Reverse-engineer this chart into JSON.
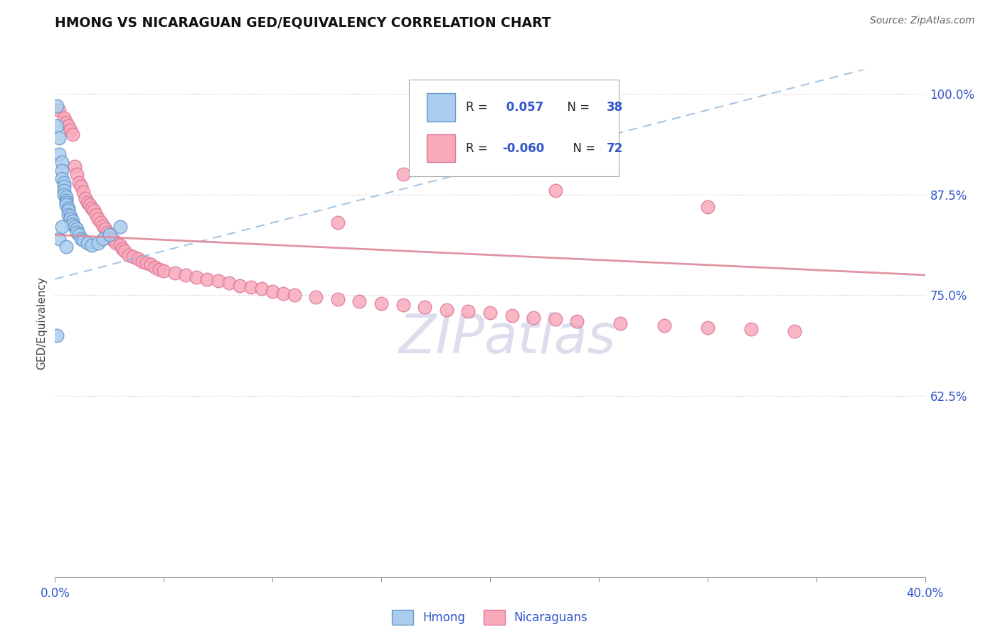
{
  "title": "HMONG VS NICARAGUAN GED/EQUIVALENCY CORRELATION CHART",
  "source": "Source: ZipAtlas.com",
  "ylabel": "GED/Equivalency",
  "xlim": [
    0.0,
    0.4
  ],
  "ylim": [
    0.4,
    1.03
  ],
  "hmong_R": 0.057,
  "hmong_N": 38,
  "nicaraguan_R": -0.06,
  "nicaraguan_N": 72,
  "hmong_color": "#AACCEE",
  "hmong_edge_color": "#6699CC",
  "nicaraguan_color": "#F8AABB",
  "nicaraguan_edge_color": "#DD7799",
  "trend_blue_color": "#99BBDD",
  "trend_pink_color": "#DD8899",
  "background_color": "#FFFFFF",
  "grid_color": "#CCCCCC",
  "title_color": "#111111",
  "label_color": "#3355CC",
  "watermark_color": "#DDDDEE",
  "hmong_x": [
    0.001,
    0.001,
    0.002,
    0.002,
    0.003,
    0.003,
    0.003,
    0.004,
    0.004,
    0.004,
    0.004,
    0.005,
    0.005,
    0.005,
    0.005,
    0.006,
    0.006,
    0.006,
    0.007,
    0.007,
    0.008,
    0.008,
    0.009,
    0.01,
    0.01,
    0.011,
    0.012,
    0.013,
    0.015,
    0.017,
    0.02,
    0.022,
    0.025,
    0.03,
    0.001,
    0.002,
    0.003,
    0.005
  ],
  "hmong_y": [
    0.985,
    0.96,
    0.945,
    0.925,
    0.915,
    0.905,
    0.895,
    0.89,
    0.885,
    0.88,
    0.875,
    0.872,
    0.868,
    0.865,
    0.862,
    0.858,
    0.855,
    0.85,
    0.848,
    0.845,
    0.842,
    0.838,
    0.835,
    0.832,
    0.828,
    0.825,
    0.82,
    0.818,
    0.815,
    0.812,
    0.815,
    0.82,
    0.825,
    0.835,
    0.7,
    0.82,
    0.835,
    0.81
  ],
  "nicaraguan_x": [
    0.002,
    0.004,
    0.005,
    0.006,
    0.007,
    0.008,
    0.009,
    0.01,
    0.011,
    0.012,
    0.013,
    0.014,
    0.015,
    0.016,
    0.017,
    0.018,
    0.019,
    0.02,
    0.021,
    0.022,
    0.023,
    0.024,
    0.025,
    0.026,
    0.027,
    0.028,
    0.03,
    0.031,
    0.032,
    0.034,
    0.036,
    0.038,
    0.04,
    0.042,
    0.044,
    0.046,
    0.048,
    0.05,
    0.055,
    0.06,
    0.065,
    0.07,
    0.075,
    0.08,
    0.085,
    0.09,
    0.095,
    0.1,
    0.105,
    0.11,
    0.12,
    0.13,
    0.14,
    0.15,
    0.16,
    0.17,
    0.18,
    0.19,
    0.2,
    0.21,
    0.22,
    0.23,
    0.24,
    0.26,
    0.28,
    0.3,
    0.32,
    0.34,
    0.16,
    0.23,
    0.3,
    0.13
  ],
  "nicaraguan_y": [
    0.98,
    0.97,
    0.965,
    0.96,
    0.955,
    0.95,
    0.91,
    0.9,
    0.89,
    0.885,
    0.878,
    0.87,
    0.865,
    0.862,
    0.858,
    0.855,
    0.85,
    0.845,
    0.84,
    0.836,
    0.832,
    0.828,
    0.825,
    0.82,
    0.818,
    0.815,
    0.812,
    0.808,
    0.805,
    0.8,
    0.798,
    0.795,
    0.792,
    0.79,
    0.788,
    0.785,
    0.782,
    0.78,
    0.778,
    0.775,
    0.772,
    0.77,
    0.768,
    0.765,
    0.762,
    0.76,
    0.758,
    0.755,
    0.752,
    0.75,
    0.748,
    0.745,
    0.742,
    0.74,
    0.738,
    0.735,
    0.732,
    0.73,
    0.728,
    0.725,
    0.722,
    0.72,
    0.718,
    0.715,
    0.712,
    0.71,
    0.708,
    0.705,
    0.9,
    0.88,
    0.86,
    0.84
  ]
}
